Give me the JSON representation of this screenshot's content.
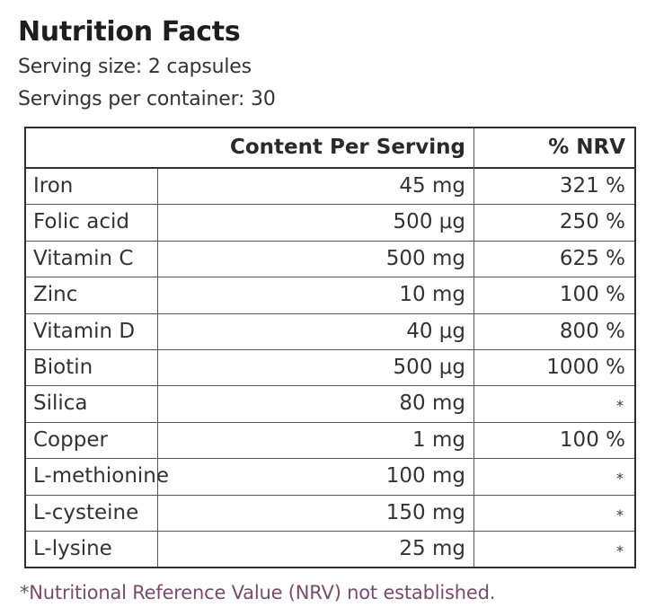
{
  "title": "Nutrition Facts",
  "serving_size": "Serving size: 2 capsules",
  "servings_per_container": "Servings per container: 30",
  "table": {
    "headers": {
      "content": "Content Per Serving",
      "nrv": "% NRV"
    },
    "rows": [
      {
        "name": "Iron",
        "amount": "45 mg",
        "nrv": "321 %"
      },
      {
        "name": "Folic acid",
        "amount": "500 μg",
        "nrv": "250 %"
      },
      {
        "name": "Vitamin C",
        "amount": "500 mg",
        "nrv": "625 %"
      },
      {
        "name": "Zinc",
        "amount": "10 mg",
        "nrv": "100 %"
      },
      {
        "name": "Vitamin D",
        "amount": "40  μg",
        "nrv": "800 %"
      },
      {
        "name": "Biotin",
        "amount": "500 μg",
        "nrv": "1000 %"
      },
      {
        "name": "Silica",
        "amount": "80 mg",
        "nrv": "*"
      },
      {
        "name": "Copper",
        "amount": "1 mg",
        "nrv": "100 %"
      },
      {
        "name": "L-methionine",
        "amount": "100 mg",
        "nrv": "*"
      },
      {
        "name": "L-cysteine",
        "amount": "150 mg",
        "nrv": "*"
      },
      {
        "name": "L-lysine",
        "amount": "25 mg",
        "nrv": "*"
      }
    ]
  },
  "footnote": "*Nutritional Reference Value (NRV) not established.",
  "colors": {
    "footnote": "#7a4a6e",
    "border": "#2e2e2e"
  }
}
